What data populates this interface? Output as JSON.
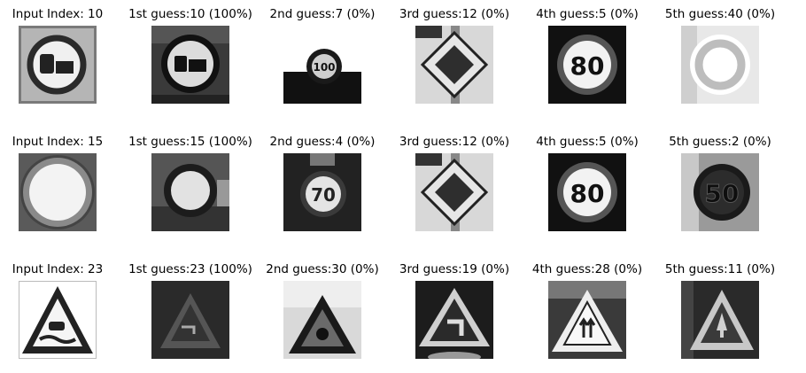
{
  "rows": [
    {
      "cells": [
        {
          "title": "Input Index: 10",
          "sign": "no-trucks-overtaking-light"
        },
        {
          "title": "1st guess:10 (100%)",
          "sign": "no-trucks-overtaking-dark"
        },
        {
          "title": "2nd guess:7 (0%)",
          "sign": "speed-limit-100-small",
          "sign_text": "100"
        },
        {
          "title": "3rd guess:12 (0%)",
          "sign": "priority-road"
        },
        {
          "title": "4th guess:5 (0%)",
          "sign": "speed-limit-80",
          "sign_text": "80"
        },
        {
          "title": "5th guess:40 (0%)",
          "sign": "roundabout"
        }
      ]
    },
    {
      "cells": [
        {
          "title": "Input Index: 15",
          "sign": "no-vehicles-light"
        },
        {
          "title": "1st guess:15 (100%)",
          "sign": "no-vehicles-dark"
        },
        {
          "title": "2nd guess:4 (0%)",
          "sign": "speed-limit-70",
          "sign_text": "70"
        },
        {
          "title": "3rd guess:12 (0%)",
          "sign": "priority-road"
        },
        {
          "title": "4th guess:5 (0%)",
          "sign": "speed-limit-80",
          "sign_text": "80"
        },
        {
          "title": "5th guess:2 (0%)",
          "sign": "speed-limit-50",
          "sign_text": "50"
        }
      ]
    },
    {
      "cells": [
        {
          "title": "Input Index: 23",
          "sign": "slippery-road"
        },
        {
          "title": "1st guess:23 (100%)",
          "sign": "slippery-road-dark"
        },
        {
          "title": "2nd guess:30 (0%)",
          "sign": "ice-snow"
        },
        {
          "title": "3rd guess:19 (0%)",
          "sign": "dangerous-curve-left"
        },
        {
          "title": "4th guess:28 (0%)",
          "sign": "children-crossing"
        },
        {
          "title": "5th guess:11 (0%)",
          "sign": "right-of-way"
        }
      ]
    }
  ]
}
